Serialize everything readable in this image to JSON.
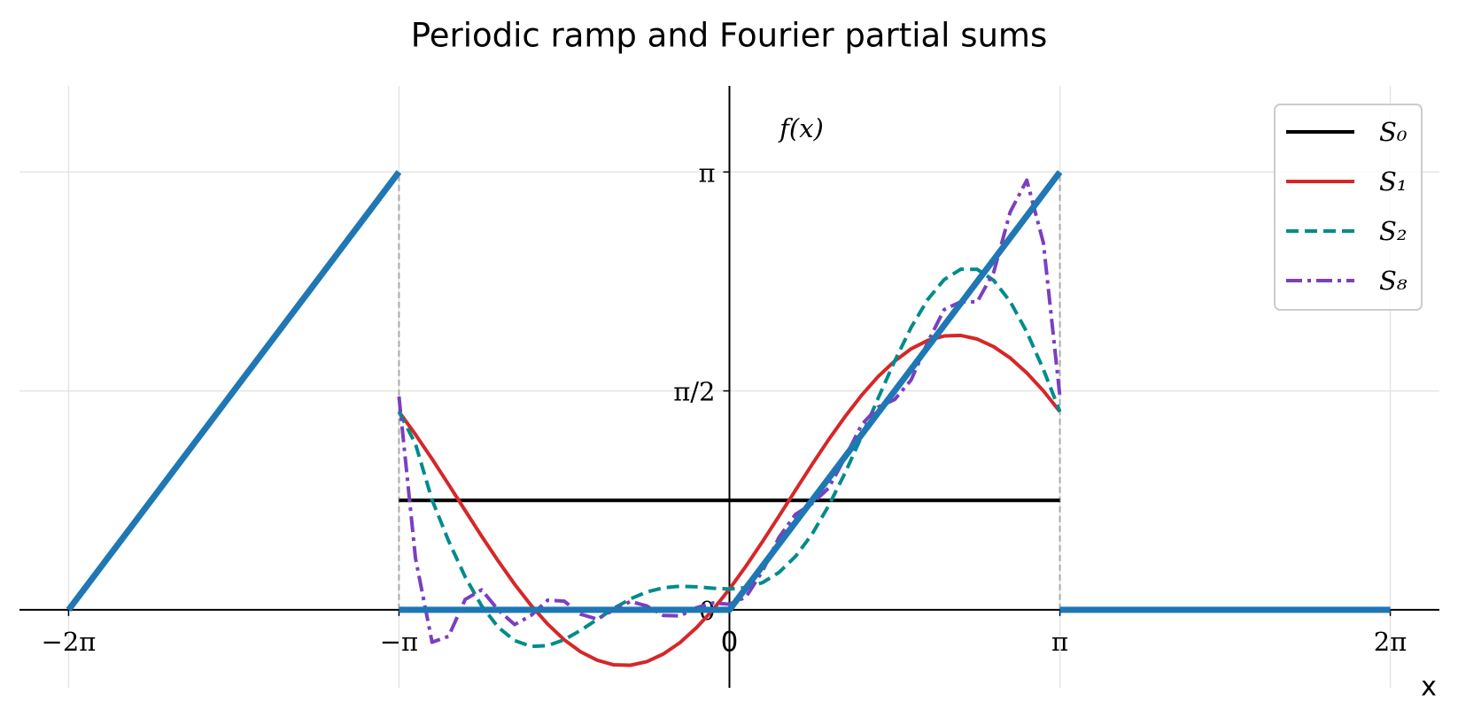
{
  "chart_data": {
    "type": "line",
    "title": "Periodic ramp and Fourier partial sums",
    "xlabel": "x",
    "ylabel": "f(x)",
    "xlim": [
      -6.75,
      6.75
    ],
    "ylim": [
      -0.56,
      3.76
    ],
    "xticks": [
      {
        "value": -6.283,
        "label": "−2π"
      },
      {
        "value": -3.142,
        "label": "−π"
      },
      0,
      {
        "value": 3.142,
        "label": "π"
      },
      {
        "value": 6.283,
        "label": "2π"
      }
    ],
    "yticks": [
      0,
      {
        "value": 1.571,
        "label": "π/2"
      },
      {
        "value": 3.142,
        "label": "π"
      }
    ],
    "grid": true,
    "legend": "upper right",
    "vlines": [
      -3.142,
      3.142
    ],
    "series": [
      {
        "name": "S₀",
        "color": "#000000",
        "style": "solid",
        "x": [
          -3.142,
          3.142
        ],
        "values": [
          0.785,
          0.785
        ]
      },
      {
        "name": "S₁",
        "color": "#d62728",
        "style": "solid",
        "x": [
          -3.142,
          -2.985,
          -2.827,
          -2.67,
          -2.513,
          -2.356,
          -2.199,
          -2.042,
          -1.885,
          -1.728,
          -1.571,
          -1.414,
          -1.257,
          -1.1,
          -0.942,
          -0.785,
          -0.628,
          -0.471,
          -0.314,
          -0.157,
          0,
          0.157,
          0.314,
          0.471,
          0.628,
          0.785,
          0.942,
          1.1,
          1.257,
          1.414,
          1.571,
          1.728,
          1.885,
          2.042,
          2.199,
          2.356,
          2.513,
          2.67,
          2.827,
          2.985,
          3.142
        ],
        "values": [
          1.422,
          1.258,
          1.082,
          0.899,
          0.713,
          0.528,
          0.351,
          0.183,
          0.031,
          -0.103,
          -0.215,
          -0.302,
          -0.362,
          -0.395,
          -0.398,
          -0.372,
          -0.317,
          -0.236,
          -0.129,
          0.0,
          0.149,
          0.313,
          0.489,
          0.672,
          0.858,
          1.042,
          1.22,
          1.387,
          1.54,
          1.674,
          1.785,
          1.873,
          1.933,
          1.965,
          1.969,
          1.943,
          1.888,
          1.807,
          1.7,
          1.571,
          1.422
        ]
      },
      {
        "name": "S₂",
        "color": "#008b8b",
        "style": "dashed",
        "x": [
          -3.142,
          -2.985,
          -2.827,
          -2.67,
          -2.513,
          -2.356,
          -2.199,
          -2.042,
          -1.885,
          -1.728,
          -1.571,
          -1.414,
          -1.257,
          -1.1,
          -0.942,
          -0.785,
          -0.628,
          -0.471,
          -0.314,
          -0.157,
          0,
          0.157,
          0.314,
          0.471,
          0.628,
          0.785,
          0.942,
          1.1,
          1.257,
          1.414,
          1.571,
          1.728,
          1.885,
          2.042,
          2.199,
          2.356,
          2.513,
          2.67,
          2.827,
          2.985,
          3.142
        ],
        "values": [
          1.422,
          1.19,
          0.788,
          0.494,
          0.237,
          0.028,
          -0.125,
          -0.221,
          -0.263,
          -0.257,
          -0.215,
          -0.147,
          -0.069,
          0.01,
          0.078,
          0.128,
          0.158,
          0.169,
          0.165,
          0.155,
          0.149,
          0.159,
          0.195,
          0.268,
          0.383,
          0.542,
          0.745,
          0.983,
          1.246,
          1.519,
          1.785,
          2.027,
          2.227,
          2.37,
          2.444,
          2.443,
          2.364,
          2.211,
          1.994,
          1.725,
          1.422
        ]
      },
      {
        "name": "S₈",
        "color": "#7b3fbf",
        "style": "dashdot",
        "x": [
          -3.142,
          -2.985,
          -2.827,
          -2.67,
          -2.513,
          -2.356,
          -2.199,
          -2.042,
          -1.885,
          -1.728,
          -1.571,
          -1.414,
          -1.257,
          -1.1,
          -0.942,
          -0.785,
          -0.628,
          -0.471,
          -0.314,
          -0.157,
          0,
          0.157,
          0.314,
          0.471,
          0.628,
          0.785,
          0.942,
          1.1,
          1.257,
          1.414,
          1.571,
          1.728,
          1.885,
          2.042,
          2.199,
          2.356,
          2.513,
          2.67,
          2.827,
          2.985,
          3.142
        ],
        "values": [
          1.531,
          0.37,
          -0.233,
          -0.19,
          0.074,
          0.143,
          -0.001,
          -0.106,
          -0.04,
          0.069,
          0.062,
          -0.032,
          -0.067,
          -0.001,
          0.06,
          0.027,
          -0.041,
          -0.044,
          0.015,
          0.049,
          0.04,
          0.091,
          0.277,
          0.52,
          0.685,
          0.761,
          0.873,
          1.093,
          1.329,
          1.455,
          1.509,
          1.65,
          1.92,
          2.155,
          2.21,
          2.21,
          2.424,
          2.856,
          3.083,
          2.633,
          1.531
        ]
      },
      {
        "color": "#1f77b4",
        "style": "solid",
        "x": [
          -6.283,
          -3.142,
          -3.142,
          -3.142,
          0,
          3.142,
          3.142,
          3.142,
          6.283
        ],
        "values": [
          0,
          3.142,
          null,
          0,
          0,
          3.142,
          null,
          0,
          0
        ]
      }
    ]
  }
}
